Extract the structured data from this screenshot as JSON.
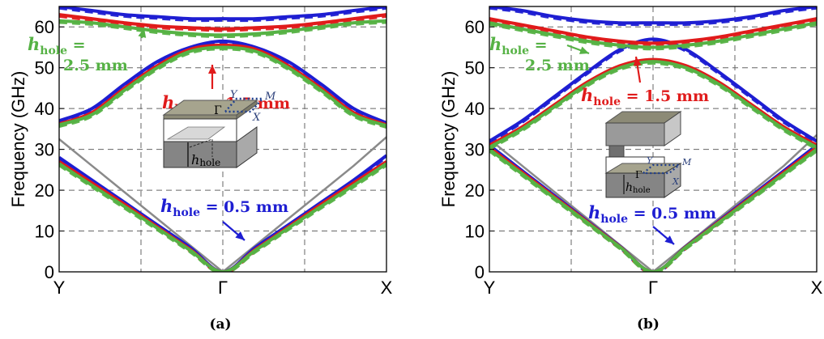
{
  "colors": {
    "h05": "#1e1ed2",
    "h15": "#e01b1b",
    "h25": "#56b245",
    "light": "#8a8a8a"
  },
  "chart_data": [
    {
      "panel_label": "(a)",
      "type": "line",
      "ylabel": "Frequency (GHz)",
      "ylim": [
        0,
        65
      ],
      "y_ticks": [
        "0",
        "10",
        "20",
        "30",
        "40",
        "50",
        "60"
      ],
      "x_ticks": [
        "Y",
        "Γ",
        "X"
      ],
      "grid": true,
      "inset_labels": {
        "Y": "Y",
        "M": "M",
        "X": "X",
        "G": "Γ",
        "h": "h",
        "hsub": "hole"
      },
      "annotations": [
        {
          "color": "h25",
          "sym": "h",
          "sub": "hole",
          "l1": " =",
          "l2": "2.5 mm"
        },
        {
          "color": "h15",
          "sym": "h",
          "sub": "hole",
          "l1": " = 1.5 mm",
          "l2": ""
        },
        {
          "color": "h05",
          "sym": "h",
          "sub": "hole",
          "l1": " = 0.5 mm",
          "l2": ""
        }
      ],
      "x": [
        0,
        0.2,
        0.4,
        0.6,
        0.8,
        1.0,
        1.2,
        1.4,
        1.6,
        1.8,
        2.0
      ],
      "light_line": [
        32.5,
        26,
        19.5,
        13,
        6.5,
        0,
        6.5,
        13,
        19.5,
        26,
        33
      ],
      "series": [
        {
          "color": "h05",
          "values": [
            28,
            22.5,
            17,
            11.5,
            6,
            0,
            6,
            11.5,
            17,
            22.5,
            28.5
          ]
        },
        {
          "color": "h05",
          "values": [
            37,
            40,
            46,
            51.5,
            55,
            56.5,
            55,
            51.5,
            46,
            40,
            36.5
          ]
        },
        {
          "color": "h05",
          "values": [
            65,
            64,
            63,
            62.5,
            62,
            62,
            62,
            62.5,
            63,
            64,
            65
          ]
        },
        {
          "color": "h15",
          "values": [
            27,
            21.8,
            16.5,
            11,
            5.5,
            0,
            5.5,
            11,
            16.5,
            21.8,
            27
          ]
        },
        {
          "color": "h15",
          "values": [
            36.2,
            39,
            45,
            50.5,
            54.5,
            55.5,
            54.5,
            50.5,
            45,
            39,
            36
          ]
        },
        {
          "color": "h15",
          "values": [
            63,
            62,
            61,
            60.2,
            59.8,
            59.5,
            59.8,
            60.2,
            61,
            62,
            63
          ]
        },
        {
          "color": "h25",
          "values": [
            26.5,
            21.2,
            16,
            10.7,
            5.3,
            0,
            5.3,
            10.7,
            16,
            21.2,
            26.5
          ]
        },
        {
          "color": "h25",
          "values": [
            36,
            38.5,
            44.5,
            50,
            54,
            55,
            54,
            50,
            44.5,
            38.5,
            35.8
          ]
        },
        {
          "color": "h25",
          "values": [
            61.5,
            61,
            60,
            59,
            58.3,
            58,
            58.3,
            59,
            60,
            61,
            61.5
          ]
        }
      ]
    },
    {
      "panel_label": "(b)",
      "type": "line",
      "ylabel": "Frequency (GHz)",
      "ylim": [
        0,
        65
      ],
      "y_ticks": [
        "0",
        "10",
        "20",
        "30",
        "40",
        "50",
        "60"
      ],
      "x_ticks": [
        "Y",
        "Γ",
        "X"
      ],
      "grid": true,
      "inset_labels": {
        "Y": "Y",
        "M": "M",
        "X": "X",
        "G": "Γ",
        "h": "h",
        "hsub": "hole"
      },
      "annotations": [
        {
          "color": "h25",
          "sym": "h",
          "sub": "hole",
          "l1": " =",
          "l2": "2.5 mm"
        },
        {
          "color": "h15",
          "sym": "h",
          "sub": "hole",
          "l1": " = 1.5 mm",
          "l2": ""
        },
        {
          "color": "h05",
          "sym": "h",
          "sub": "hole",
          "l1": " = 0.5 mm",
          "l2": ""
        }
      ],
      "x": [
        0,
        0.2,
        0.4,
        0.6,
        0.8,
        1.0,
        1.2,
        1.4,
        1.6,
        1.8,
        2.0
      ],
      "light_line": [
        32.5,
        26,
        19.5,
        13,
        6.5,
        0,
        6.5,
        13,
        19.5,
        26,
        33.5
      ],
      "series": [
        {
          "color": "h05",
          "values": [
            31,
            24.8,
            18.6,
            12.4,
            6.2,
            0,
            6.2,
            12.4,
            18.6,
            24.8,
            31
          ]
        },
        {
          "color": "h05",
          "values": [
            32,
            37,
            43,
            49,
            54.5,
            57,
            54.5,
            49,
            43,
            37,
            32
          ]
        },
        {
          "color": "h05",
          "values": [
            65,
            64,
            62.5,
            61.5,
            61,
            61,
            61,
            61.5,
            62.5,
            64,
            65
          ]
        },
        {
          "color": "h15",
          "values": [
            30.5,
            24.4,
            18.3,
            12.2,
            6.1,
            0,
            6.1,
            12.2,
            18.3,
            24.4,
            30.5
          ]
        },
        {
          "color": "h15",
          "values": [
            31,
            35.5,
            41,
            46.5,
            50.5,
            52,
            50.5,
            46.5,
            41,
            35.5,
            31
          ]
        },
        {
          "color": "h15",
          "values": [
            62,
            60.5,
            59,
            57.5,
            56.5,
            56,
            56.5,
            57.5,
            59,
            60.5,
            62
          ]
        },
        {
          "color": "h25",
          "values": [
            30,
            24,
            18,
            12,
            6,
            0,
            6,
            12,
            18,
            24,
            30
          ]
        },
        {
          "color": "h25",
          "values": [
            30.5,
            35,
            40.5,
            46,
            50,
            51.5,
            50,
            46,
            40.5,
            35,
            30.5
          ]
        },
        {
          "color": "h25",
          "values": [
            61,
            59.5,
            58,
            56.5,
            55.5,
            55,
            55.5,
            56.5,
            58,
            59.5,
            61
          ]
        }
      ]
    }
  ]
}
